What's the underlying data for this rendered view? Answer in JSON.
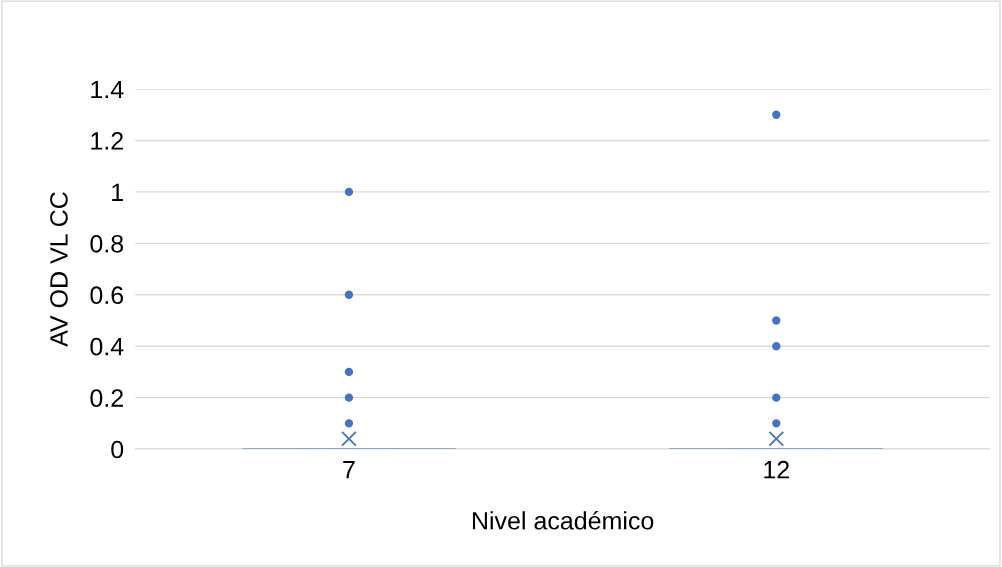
{
  "chart_data": {
    "type": "box",
    "xlabel": "Nivel académico",
    "ylabel": "AV OD VL CC",
    "categories": [
      "7",
      "12"
    ],
    "series": [
      {
        "color": "#4472c4",
        "boxes": [
          {
            "low": 0,
            "q1": 0,
            "median": 0,
            "q3": 0,
            "high": 0,
            "mean": 0.04,
            "outliers": [
              0.1,
              0.2,
              0.3,
              0.6,
              1.0
            ]
          },
          {
            "low": 0,
            "q1": 0,
            "median": 0,
            "q3": 0,
            "high": 0,
            "mean": 0.04,
            "outliers": [
              0.1,
              0.2,
              0.4,
              0.5,
              1.3
            ]
          }
        ]
      }
    ],
    "ylim": [
      0,
      1.4
    ],
    "yticks": [
      0,
      0.2,
      0.4,
      0.6,
      0.8,
      1,
      1.2,
      1.4
    ],
    "grid": "y"
  }
}
